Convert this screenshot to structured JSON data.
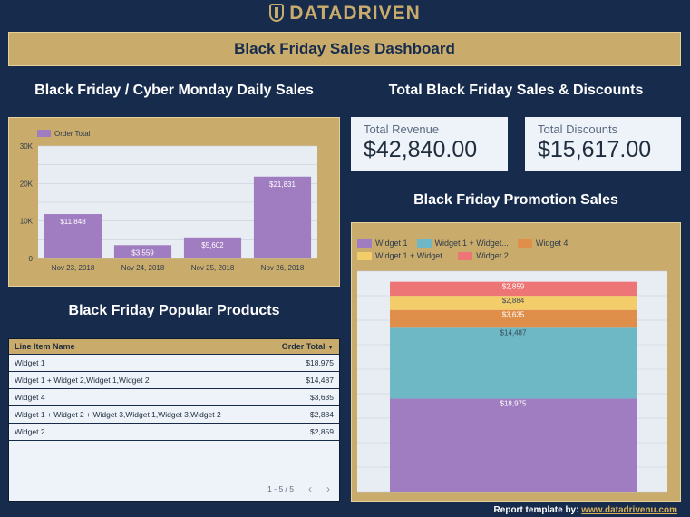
{
  "brand": {
    "logo_text": "DATADRIVEN"
  },
  "banner": {
    "title": "Black Friday Sales Dashboard"
  },
  "sections": {
    "daily": "Black Friday / Cyber Monday Daily Sales",
    "totals": "Total Black Friday Sales & Discounts",
    "promo": "Black Friday Promotion Sales",
    "products": "Black Friday Popular Products"
  },
  "kpis": {
    "revenue": {
      "label": "Total Revenue",
      "value": "$42,840.00"
    },
    "discounts": {
      "label": "Total Discounts",
      "value": "$15,617.00"
    }
  },
  "table": {
    "col_name": "Line Item Name",
    "col_total": "Order Total",
    "sort_indicator": "▼",
    "rows": [
      {
        "name": "Widget 1",
        "total": "$18,975"
      },
      {
        "name": "Widget 1 + Widget 2,Widget 1,Widget 2",
        "total": "$14,487"
      },
      {
        "name": "Widget 4",
        "total": "$3,635"
      },
      {
        "name": "Widget 1 + Widget 2 + Widget 3,Widget 1,Widget 3,Widget 2",
        "total": "$2,884"
      },
      {
        "name": "Widget 2",
        "total": "$2,859"
      }
    ],
    "pagination": "1 - 5 / 5",
    "prev": "‹",
    "next": "›"
  },
  "footer": {
    "prefix": "Report template by: ",
    "link": "www.datadrivenu.com"
  },
  "chart_data": [
    {
      "type": "bar",
      "title": "Black Friday / Cyber Monday Daily Sales",
      "categories": [
        "Nov 23, 2018",
        "Nov 24, 2018",
        "Nov 25, 2018",
        "Nov 26, 2018"
      ],
      "series": [
        {
          "name": "Order Total",
          "values": [
            11848,
            3559,
            5602,
            21831
          ],
          "labels": [
            "$11,848",
            "$3,559",
            "$5,602",
            "$21,831"
          ]
        }
      ],
      "yticks": [
        "0",
        "10K",
        "20K",
        "30K"
      ],
      "ylim": [
        0,
        30000
      ],
      "legend": "top-left",
      "color": "#a07cc0"
    },
    {
      "type": "bar",
      "stacked": true,
      "title": "Black Friday Promotion Sales",
      "series": [
        {
          "name": "Widget 1",
          "value": 18975,
          "label": "$18,975",
          "color": "#a07cc0"
        },
        {
          "name": "Widget 1 + Widget...",
          "value": 14487,
          "label": "$14,487",
          "color": "#6db8c4"
        },
        {
          "name": "Widget 4",
          "value": 3635,
          "label": "$3,635",
          "color": "#e08f4a"
        },
        {
          "name": "Widget 1 + Widget...",
          "value": 2884,
          "label": "$2,884",
          "color": "#f3cd6a"
        },
        {
          "name": "Widget 2",
          "value": 2859,
          "label": "$2,859",
          "color": "#ee7575"
        }
      ],
      "ylim": [
        0,
        45000
      ],
      "legend": "top"
    }
  ]
}
